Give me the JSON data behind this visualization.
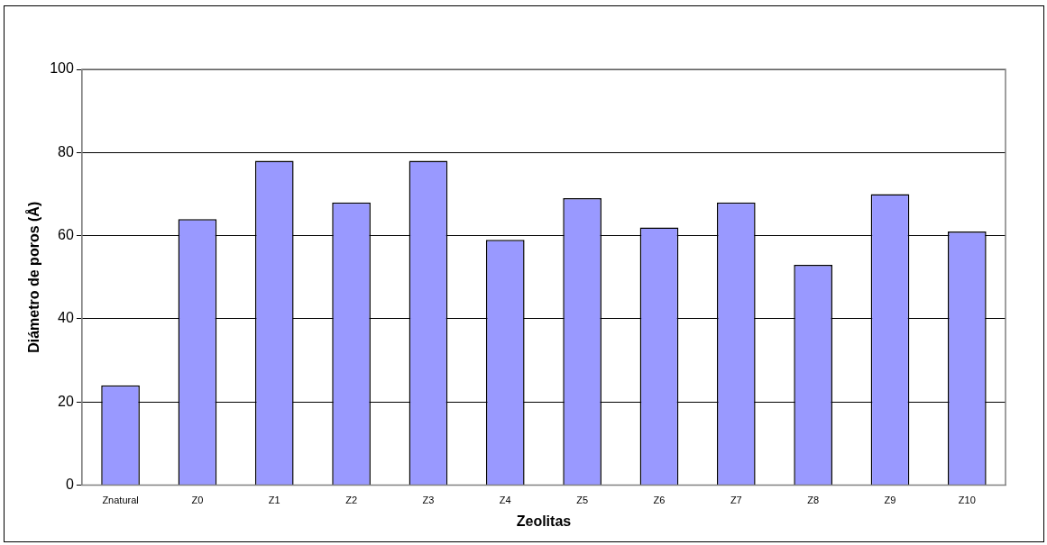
{
  "chart_data": {
    "type": "bar",
    "xlabel": "Zeolitas",
    "ylabel": "Diámetro de poros (Å)",
    "categories": [
      "Znatural",
      "Z0",
      "Z1",
      "Z2",
      "Z3",
      "Z4",
      "Z5",
      "Z6",
      "Z7",
      "Z8",
      "Z9",
      "Z10"
    ],
    "values": [
      24,
      64,
      78,
      68,
      78,
      59,
      69,
      62,
      68,
      53,
      70,
      61
    ],
    "color": "#9999ff",
    "ylim": [
      0,
      100
    ],
    "yticks": [
      0,
      20,
      40,
      60,
      80,
      100
    ],
    "grid": "y",
    "legend": false
  }
}
